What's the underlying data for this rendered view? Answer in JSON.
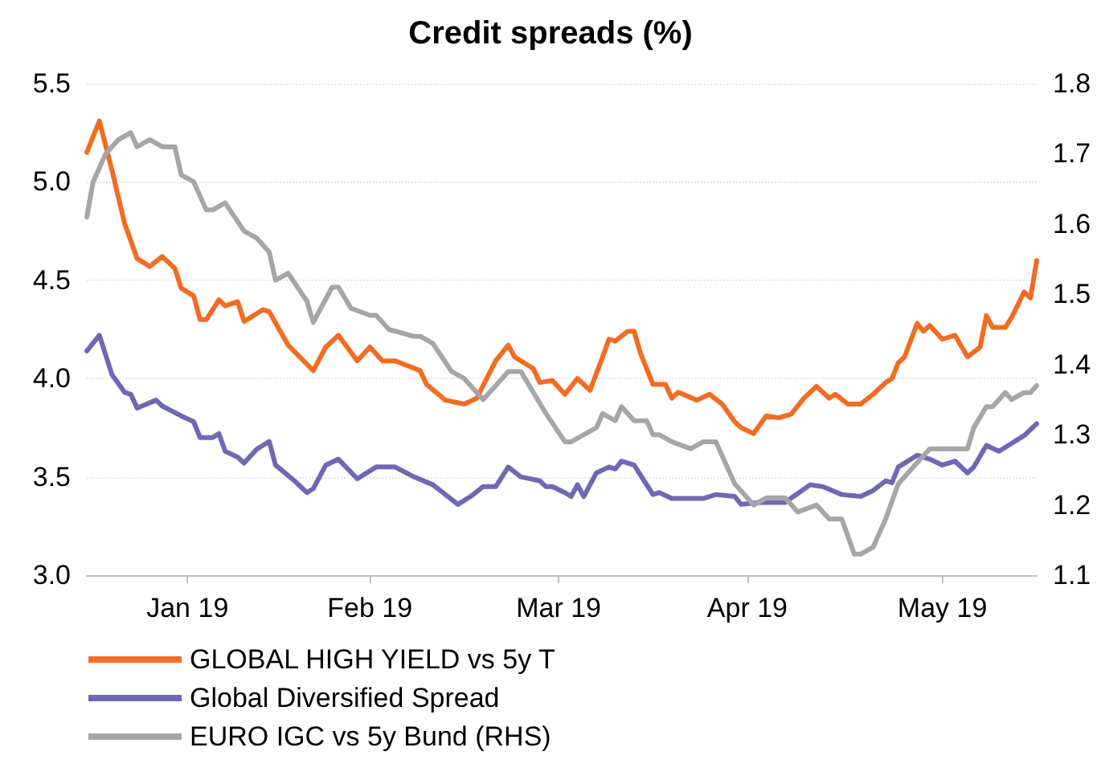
{
  "chart_data": {
    "type": "line",
    "title": "Credit spreads (%)",
    "xlim": [
      "2018-12-31",
      "2019-05-31"
    ],
    "xticks": [
      {
        "value": "2019-01-16",
        "label": "Jan 19"
      },
      {
        "value": "2019-02-14",
        "label": "Feb 19"
      },
      {
        "value": "2019-03-16",
        "label": "Mar 19"
      },
      {
        "value": "2019-04-15",
        "label": "Apr 19"
      },
      {
        "value": "2019-05-16",
        "label": "May 19"
      }
    ],
    "ylim": [
      3,
      5.5
    ],
    "yticks": [
      {
        "value": 3,
        "label": "3.0"
      },
      {
        "value": 3.5,
        "label": "3.5"
      },
      {
        "value": 4,
        "label": "4.0"
      },
      {
        "value": 4.5,
        "label": "4.5"
      },
      {
        "value": 5,
        "label": "5.0"
      },
      {
        "value": 5.5,
        "label": "5.5"
      }
    ],
    "y2lim": [
      1.1,
      1.8
    ],
    "y2ticks": [
      {
        "value": 1.1,
        "label": "1.1"
      },
      {
        "value": 1.2,
        "label": "1.2"
      },
      {
        "value": 1.3,
        "label": "1.3"
      },
      {
        "value": 1.4,
        "label": "1.4"
      },
      {
        "value": 1.5,
        "label": "1.5"
      },
      {
        "value": 1.6,
        "label": "1.6"
      },
      {
        "value": 1.7,
        "label": "1.7"
      },
      {
        "value": 1.8,
        "label": "1.8"
      }
    ],
    "grid": "y",
    "legend": "bottom",
    "marker": "none",
    "line_style": "solid",
    "series": [
      {
        "name": "GLOBAL HIGH YIELD vs 5y T",
        "color": "#f26c21",
        "x": [
          "2018-12-31",
          "2019-01-02",
          "2019-01-04",
          "2019-01-06",
          "2019-01-08",
          "2019-01-10",
          "2019-01-12",
          "2019-01-14",
          "2019-01-15",
          "2019-01-17",
          "2019-01-18",
          "2019-01-19",
          "2019-01-21",
          "2019-01-22",
          "2019-01-24",
          "2019-01-25",
          "2019-01-28",
          "2019-01-29",
          "2019-02-01",
          "2019-02-05",
          "2019-02-07",
          "2019-02-09",
          "2019-02-12",
          "2019-02-14",
          "2019-02-16",
          "2019-02-18",
          "2019-02-22",
          "2019-02-23",
          "2019-02-26",
          "2019-03-01",
          "2019-03-03",
          "2019-03-06",
          "2019-03-08",
          "2019-03-09",
          "2019-03-12",
          "2019-03-13",
          "2019-03-15",
          "2019-03-17",
          "2019-03-19",
          "2019-03-21",
          "2019-03-23",
          "2019-03-24",
          "2019-03-25",
          "2019-03-27",
          "2019-03-28",
          "2019-03-29",
          "2019-03-31",
          "2019-04-02",
          "2019-04-03",
          "2019-04-04",
          "2019-04-07",
          "2019-04-09",
          "2019-04-11",
          "2019-04-13",
          "2019-04-14",
          "2019-04-16",
          "2019-04-18",
          "2019-04-20",
          "2019-04-22",
          "2019-04-24",
          "2019-04-26",
          "2019-04-28",
          "2019-04-29",
          "2019-05-01",
          "2019-05-03",
          "2019-05-05",
          "2019-05-07",
          "2019-05-08",
          "2019-05-09",
          "2019-05-10",
          "2019-05-12",
          "2019-05-13",
          "2019-05-14",
          "2019-05-16",
          "2019-05-18",
          "2019-05-20",
          "2019-05-22",
          "2019-05-23",
          "2019-05-24",
          "2019-05-26",
          "2019-05-27",
          "2019-05-29",
          "2019-05-30",
          "2019-05-31"
        ],
        "values": [
          5.15,
          5.31,
          5.06,
          4.79,
          4.61,
          4.57,
          4.62,
          4.56,
          4.46,
          4.42,
          4.3,
          4.3,
          4.4,
          4.37,
          4.39,
          4.29,
          4.35,
          4.34,
          4.17,
          4.04,
          4.16,
          4.22,
          4.09,
          4.16,
          4.09,
          4.09,
          4.04,
          3.97,
          3.89,
          3.87,
          3.9,
          4.09,
          4.17,
          4.11,
          4.05,
          3.98,
          3.99,
          3.92,
          4.0,
          3.94,
          4.11,
          4.2,
          4.19,
          4.24,
          4.24,
          4.13,
          3.97,
          3.97,
          3.9,
          3.93,
          3.89,
          3.92,
          3.87,
          3.78,
          3.75,
          3.72,
          3.81,
          3.8,
          3.82,
          3.9,
          3.96,
          3.9,
          3.92,
          3.87,
          3.87,
          3.92,
          3.98,
          4.0,
          4.08,
          4.11,
          4.28,
          4.24,
          4.27,
          4.2,
          4.22,
          4.11,
          4.16,
          4.32,
          4.26,
          4.26,
          4.31,
          4.44,
          4.41,
          4.6
        ]
      },
      {
        "name": "Global Diversified Spread",
        "color": "#6f68b4",
        "x": [
          "2018-12-31",
          "2019-01-02",
          "2019-01-04",
          "2019-01-06",
          "2019-01-07",
          "2019-01-08",
          "2019-01-11",
          "2019-01-12",
          "2019-01-15",
          "2019-01-17",
          "2019-01-18",
          "2019-01-20",
          "2019-01-21",
          "2019-01-22",
          "2019-01-24",
          "2019-01-25",
          "2019-01-27",
          "2019-01-29",
          "2019-01-30",
          "2019-02-02",
          "2019-02-04",
          "2019-02-05",
          "2019-02-07",
          "2019-02-09",
          "2019-02-12",
          "2019-02-15",
          "2019-02-18",
          "2019-02-21",
          "2019-02-24",
          "2019-02-28",
          "2019-03-02",
          "2019-03-04",
          "2019-03-06",
          "2019-03-08",
          "2019-03-10",
          "2019-03-13",
          "2019-03-14",
          "2019-03-15",
          "2019-03-17",
          "2019-03-18",
          "2019-03-19",
          "2019-03-20",
          "2019-03-22",
          "2019-03-24",
          "2019-03-25",
          "2019-03-26",
          "2019-03-28",
          "2019-03-31",
          "2019-04-01",
          "2019-04-03",
          "2019-04-08",
          "2019-04-10",
          "2019-04-13",
          "2019-04-14",
          "2019-04-17",
          "2019-04-21",
          "2019-04-25",
          "2019-04-27",
          "2019-04-30",
          "2019-05-03",
          "2019-05-05",
          "2019-05-07",
          "2019-05-08",
          "2019-05-09",
          "2019-05-12",
          "2019-05-14",
          "2019-05-16",
          "2019-05-18",
          "2019-05-20",
          "2019-05-21",
          "2019-05-23",
          "2019-05-25",
          "2019-05-27",
          "2019-05-29",
          "2019-05-31"
        ],
        "values": [
          4.14,
          4.22,
          4.02,
          3.93,
          3.92,
          3.85,
          3.89,
          3.86,
          3.81,
          3.78,
          3.7,
          3.7,
          3.72,
          3.63,
          3.6,
          3.57,
          3.64,
          3.68,
          3.56,
          3.48,
          3.42,
          3.44,
          3.56,
          3.59,
          3.49,
          3.55,
          3.55,
          3.5,
          3.46,
          3.36,
          3.4,
          3.45,
          3.45,
          3.55,
          3.5,
          3.48,
          3.45,
          3.45,
          3.42,
          3.4,
          3.46,
          3.4,
          3.52,
          3.55,
          3.54,
          3.58,
          3.56,
          3.41,
          3.42,
          3.39,
          3.39,
          3.41,
          3.4,
          3.36,
          3.37,
          3.37,
          3.46,
          3.45,
          3.41,
          3.4,
          3.43,
          3.48,
          3.47,
          3.55,
          3.61,
          3.59,
          3.56,
          3.58,
          3.52,
          3.55,
          3.66,
          3.63,
          3.67,
          3.71,
          3.77
        ]
      },
      {
        "name": "EURO IGC vs 5y Bund (RHS)",
        "color": "#a6a6a6",
        "axis": "y2",
        "x": [
          "2018-12-31",
          "2019-01-01",
          "2019-01-03",
          "2019-01-05",
          "2019-01-07",
          "2019-01-08",
          "2019-01-10",
          "2019-01-12",
          "2019-01-14",
          "2019-01-15",
          "2019-01-17",
          "2019-01-19",
          "2019-01-20",
          "2019-01-22",
          "2019-01-25",
          "2019-01-27",
          "2019-01-29",
          "2019-01-30",
          "2019-02-01",
          "2019-02-04",
          "2019-02-05",
          "2019-02-08",
          "2019-02-09",
          "2019-02-11",
          "2019-02-14",
          "2019-02-15",
          "2019-02-17",
          "2019-02-21",
          "2019-02-22",
          "2019-02-24",
          "2019-02-27",
          "2019-03-01",
          "2019-03-04",
          "2019-03-08",
          "2019-03-10",
          "2019-03-12",
          "2019-03-14",
          "2019-03-17",
          "2019-03-18",
          "2019-03-20",
          "2019-03-22",
          "2019-03-23",
          "2019-03-25",
          "2019-03-26",
          "2019-03-28",
          "2019-03-30",
          "2019-03-31",
          "2019-04-01",
          "2019-04-03",
          "2019-04-06",
          "2019-04-08",
          "2019-04-10",
          "2019-04-12",
          "2019-04-13",
          "2019-04-15",
          "2019-04-16",
          "2019-04-18",
          "2019-04-21",
          "2019-04-23",
          "2019-04-26",
          "2019-04-28",
          "2019-04-30",
          "2019-05-02",
          "2019-05-03",
          "2019-05-05",
          "2019-05-07",
          "2019-05-09",
          "2019-05-10",
          "2019-05-12",
          "2019-05-14",
          "2019-05-16",
          "2019-05-19",
          "2019-05-20",
          "2019-05-21",
          "2019-05-23",
          "2019-05-24",
          "2019-05-26",
          "2019-05-27",
          "2019-05-29",
          "2019-05-30",
          "2019-05-31"
        ],
        "values": [
          1.61,
          1.66,
          1.7,
          1.72,
          1.73,
          1.71,
          1.72,
          1.71,
          1.71,
          1.67,
          1.66,
          1.62,
          1.62,
          1.63,
          1.59,
          1.58,
          1.56,
          1.52,
          1.53,
          1.49,
          1.46,
          1.51,
          1.51,
          1.48,
          1.47,
          1.47,
          1.45,
          1.44,
          1.44,
          1.43,
          1.39,
          1.38,
          1.35,
          1.39,
          1.39,
          1.36,
          1.33,
          1.29,
          1.29,
          1.3,
          1.31,
          1.33,
          1.32,
          1.34,
          1.32,
          1.32,
          1.3,
          1.3,
          1.29,
          1.28,
          1.29,
          1.29,
          1.25,
          1.23,
          1.21,
          1.2,
          1.21,
          1.21,
          1.19,
          1.2,
          1.18,
          1.18,
          1.13,
          1.13,
          1.14,
          1.18,
          1.23,
          1.24,
          1.26,
          1.28,
          1.28,
          1.28,
          1.28,
          1.31,
          1.34,
          1.34,
          1.36,
          1.35,
          1.36,
          1.36,
          1.37
        ]
      }
    ]
  }
}
